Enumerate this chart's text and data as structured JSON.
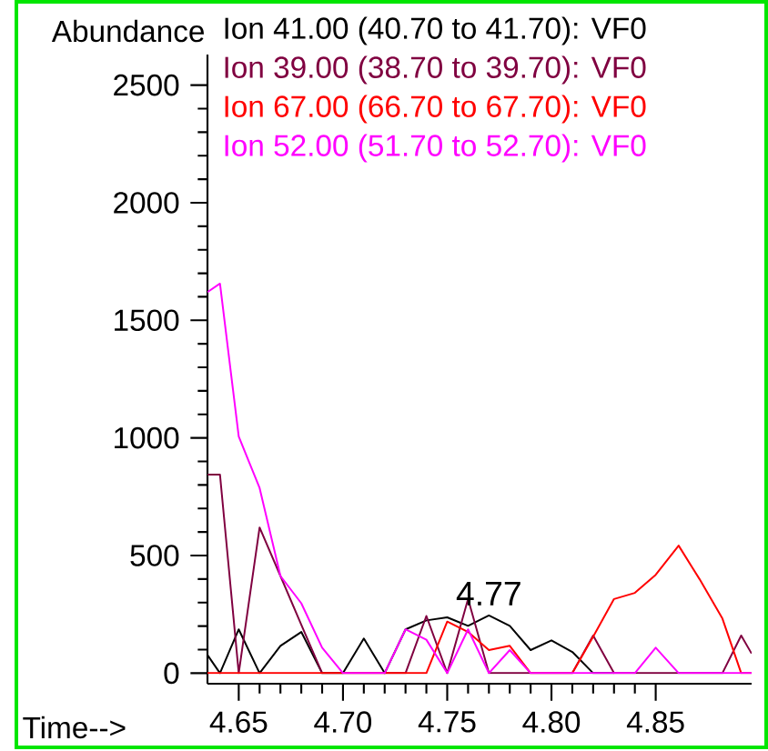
{
  "chart_data": {
    "type": "line",
    "xlabel": "Time-->",
    "ylabel": "Abundance",
    "x": [
      4.635,
      4.641,
      4.65,
      4.66,
      4.67,
      4.68,
      4.69,
      4.7,
      4.71,
      4.72,
      4.73,
      4.74,
      4.75,
      4.76,
      4.77,
      4.78,
      4.79,
      4.8,
      4.81,
      4.82,
      4.83,
      4.84,
      4.85,
      4.861,
      4.871,
      4.882,
      4.891,
      4.896
    ],
    "series": [
      {
        "name": "Ion  41.00 (40.70 to 41.70): VF0",
        "color": "#000000",
        "values": [
          77,
          0,
          186,
          0,
          116,
          175,
          0,
          0,
          147,
          0,
          186,
          224,
          237,
          201,
          245,
          201,
          98,
          139,
          90,
          0,
          0,
          null,
          null,
          null,
          null,
          null,
          null,
          null
        ]
      },
      {
        "name": "Ion  39.00 (38.70 to 39.70): VF0",
        "color": "#800040",
        "values": [
          844,
          844,
          0,
          619,
          413,
          206,
          0,
          0,
          0,
          0,
          0,
          243,
          0,
          315,
          0,
          0,
          0,
          0,
          0,
          160,
          0,
          0,
          0,
          0,
          0,
          0,
          160,
          83
        ]
      },
      {
        "name": "Ion  67.00 (66.70 to 67.70): VF0",
        "color": "#ff0000",
        "values": [
          0,
          0,
          0,
          0,
          0,
          0,
          0,
          0,
          0,
          0,
          0,
          0,
          219,
          175,
          98,
          116,
          0,
          0,
          0,
          155,
          315,
          341,
          418,
          542,
          400,
          232,
          0,
          0
        ]
      },
      {
        "name": "Ion  52.00 (51.70 to 52.70): VF0",
        "color": "#ff00ff",
        "values": [
          1620,
          1656,
          1006,
          787,
          413,
          297,
          108,
          0,
          0,
          0,
          186,
          142,
          0,
          186,
          0,
          98,
          0,
          0,
          0,
          0,
          0,
          0,
          108,
          0,
          0,
          0,
          0,
          0
        ]
      }
    ],
    "xlim": [
      4.635,
      4.896
    ],
    "ylim": [
      -45,
      2630
    ],
    "xticks": [
      4.65,
      {
        "value": 4.7,
        "label": "4.70"
      },
      4.75,
      {
        "value": 4.8,
        "label": "4.80"
      },
      4.85
    ],
    "yticks": [
      0,
      500,
      1000,
      1500,
      2000,
      2500
    ],
    "annotations": [
      {
        "text": "4.77",
        "x": 4.77,
        "y": 245
      }
    ],
    "legend": "top left"
  }
}
